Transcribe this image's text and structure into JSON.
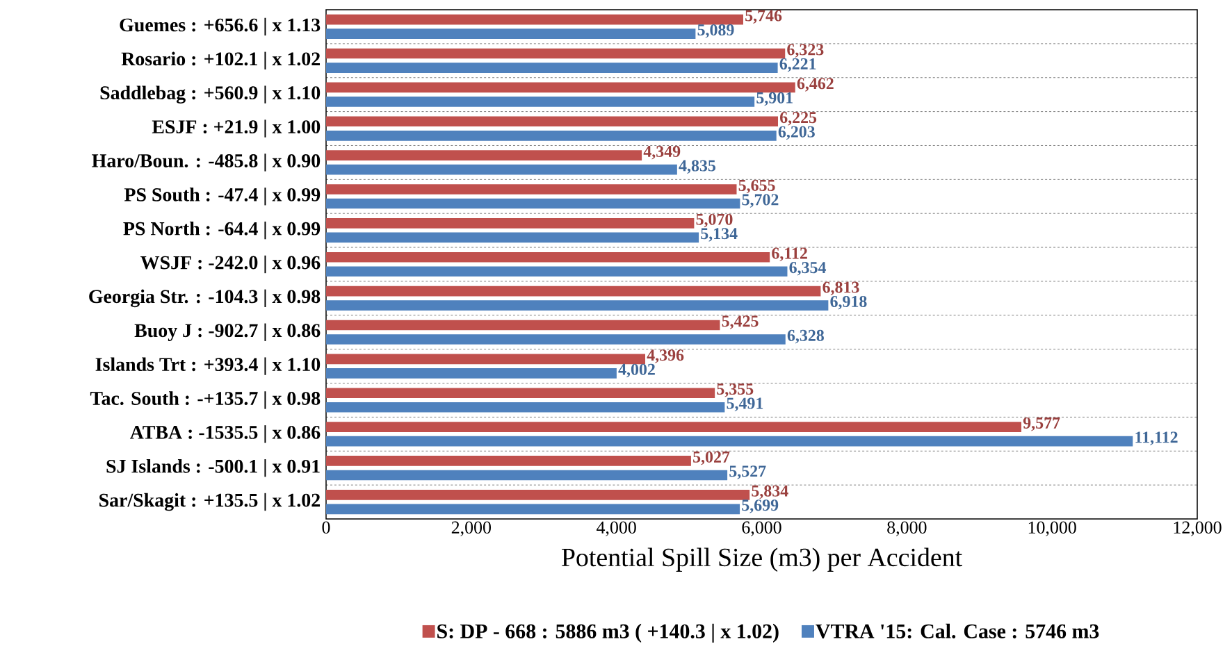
{
  "chart_data": {
    "type": "bar",
    "orientation": "horizontal",
    "xlabel": "Potential Spill Size (m3) per Accident",
    "categories": [
      "Guemes : +656.6 |  x 1.13",
      "Rosario : +102.1 |  x 1.02",
      "Saddlebag : +560.9 |  x 1.10",
      "ESJF : +21.9 |  x 1.00",
      "Haro/Boun. : -485.8 |  x 0.90",
      "PS South : -47.4 |  x 0.99",
      "PS North : -64.4 |  x 0.99",
      "WSJF : -242.0 |  x 0.96",
      "Georgia Str. : -104.3 |  x 0.98",
      "Buoy J : -902.7 |  x 0.86",
      "Islands Trt : +393.4 |  x 1.10",
      "Tac. South : -+135.7 |  x 0.98",
      "ATBA : -1535.5 |  x 0.86",
      "SJ Islands : -500.1 |  x 0.91",
      "Sar/Skagit : +135.5 |  x 1.02"
    ],
    "series": [
      {
        "name": "S: DP - 668 : 5886 m3 ( +140.3 |  x 1.02)",
        "color": "#c0504d",
        "values": [
          5746,
          6323,
          6462,
          6225,
          4349,
          5655,
          5070,
          6112,
          6813,
          5425,
          4396,
          5355,
          9577,
          5027,
          5834
        ],
        "value_labels": [
          "5,746",
          "6,323",
          "6,462",
          "6,225",
          "4,349",
          "5,655",
          "5,070",
          "6,112",
          "6,813",
          "5,425",
          "4,396",
          "5,355",
          "9,577",
          "5,027",
          "5,834"
        ]
      },
      {
        "name": "VTRA '15: Cal. Case : 5746 m3",
        "color": "#4f81bd",
        "values": [
          5089,
          6221,
          5901,
          6203,
          4835,
          5702,
          5134,
          6354,
          6918,
          6328,
          4002,
          5491,
          11112,
          5527,
          5699
        ],
        "value_labels": [
          "5,089",
          "6,221",
          "5,901",
          "6,203",
          "4,835",
          "5,702",
          "5,134",
          "6,354",
          "6,918",
          "6,328",
          "4,002",
          "5,491",
          "11,112",
          "5,527",
          "5,699"
        ]
      }
    ],
    "xlim": [
      0,
      12000
    ],
    "xticks": [
      {
        "value": 0,
        "label": "0"
      },
      {
        "value": 2000,
        "label": "2,000"
      },
      {
        "value": 4000,
        "label": "4,000"
      },
      {
        "value": 6000,
        "label": "6,000"
      },
      {
        "value": 8000,
        "label": "8,000"
      },
      {
        "value": 10000,
        "label": "10,000"
      },
      {
        "value": 12000,
        "label": "12,000"
      }
    ],
    "grid": "y",
    "legend": "bottom"
  }
}
